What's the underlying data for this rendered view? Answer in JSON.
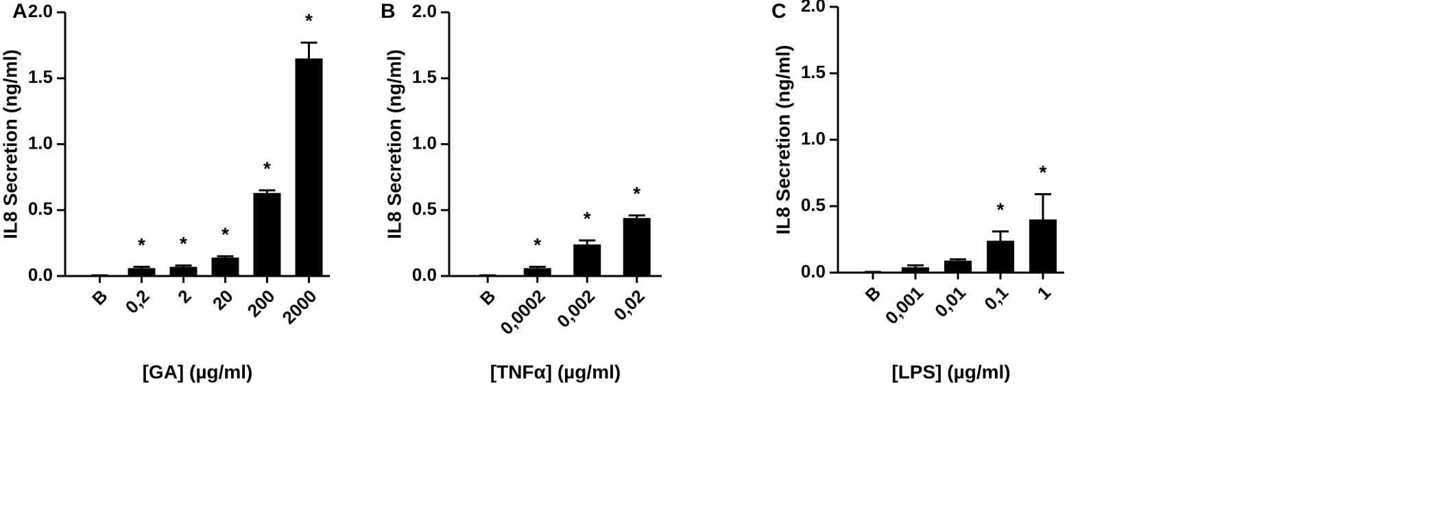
{
  "chart_data": [
    {
      "type": "bar",
      "panel": "A",
      "y_label": "IL8 Secretion (ng/ml)",
      "x_label": "[GA] (µg/ml)",
      "categories": [
        "B",
        "0,2",
        "2",
        "20",
        "200",
        "2000"
      ],
      "values": [
        0.005,
        0.06,
        0.07,
        0.14,
        0.63,
        1.65
      ],
      "errors": [
        0,
        0.01,
        0.01,
        0.01,
        0.02,
        0.12
      ],
      "annotations": [
        null,
        "*",
        "*",
        "*",
        "*",
        "*"
      ],
      "color": "#000000",
      "ylim": [
        0,
        2
      ],
      "yticks": [
        {
          "value": 0,
          "label": "0.0"
        },
        0.5,
        {
          "value": 1,
          "label": "1.0"
        },
        1.5,
        {
          "value": 2,
          "label": "2.0"
        }
      ]
    },
    {
      "type": "bar",
      "panel": "B",
      "y_label": "IL8 Secretion (ng/ml)",
      "x_label": "[TNFα] (µg/ml)",
      "categories": [
        "B",
        "0,0002",
        "0,002",
        "0,02"
      ],
      "values": [
        0.005,
        0.06,
        0.24,
        0.44
      ],
      "errors": [
        0,
        0.01,
        0.03,
        0.02
      ],
      "annotations": [
        null,
        "*",
        "*",
        "*"
      ],
      "color": "#000000",
      "ylim": [
        0,
        2
      ],
      "yticks": [
        {
          "value": 0,
          "label": "0.0"
        },
        0.5,
        {
          "value": 1,
          "label": "1.0"
        },
        1.5,
        {
          "value": 2,
          "label": "2.0"
        }
      ]
    },
    {
      "type": "bar",
      "panel": "C",
      "y_label": "IL8 Secretion (ng/ml)",
      "x_label": "[LPS] (µg/ml)",
      "categories": [
        "B",
        "0,001",
        "0,01",
        "0,1",
        "1"
      ],
      "values": [
        0.005,
        0.04,
        0.09,
        0.24,
        0.4
      ],
      "errors": [
        0,
        0.015,
        0.01,
        0.07,
        0.19
      ],
      "annotations": [
        null,
        null,
        null,
        "*",
        "*"
      ],
      "color": "#000000",
      "ylim": [
        0,
        2
      ],
      "yticks": [
        {
          "value": 0,
          "label": "0.0"
        },
        0.5,
        {
          "value": 1,
          "label": "1.0"
        },
        1.5,
        {
          "value": 2,
          "label": "2.0"
        }
      ]
    }
  ]
}
